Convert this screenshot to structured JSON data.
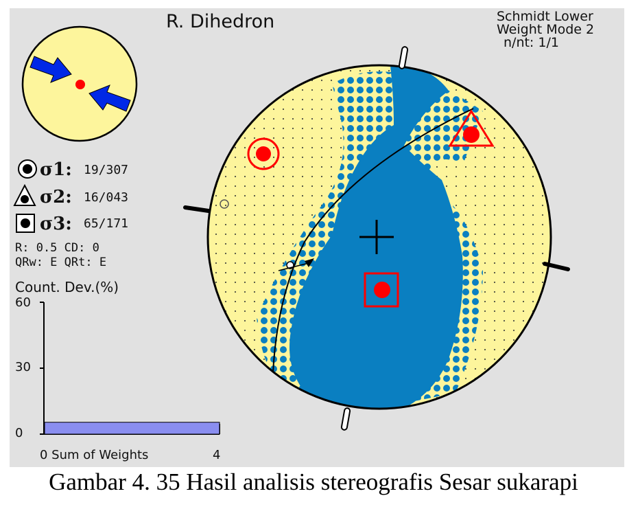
{
  "title": "R. Dihedron",
  "projection": {
    "line1": "Schmidt Lower",
    "line2": "Weight Mode 2",
    "line3": "n/nt: 1/1"
  },
  "sigmas": [
    {
      "label": "σ1:",
      "value": "19/307",
      "marker": "circle"
    },
    {
      "label": "σ2:",
      "value": "16/043",
      "marker": "triangle"
    },
    {
      "label": "σ3:",
      "value": "65/171",
      "marker": "square"
    }
  ],
  "params": {
    "line1": "R: 0.5  CD: 0",
    "line2": "QRw: E  QRt: E"
  },
  "histogram": {
    "title": "Count. Dev.(%)",
    "y_ticks": [
      "60",
      "30",
      "0"
    ],
    "x_label": "0  Sum of Weights",
    "x_max": "4",
    "bar_fraction": 0.09,
    "bar_color": "#8a8ef0"
  },
  "colors": {
    "net_fill": "#fdf59c",
    "compression": "#0a7fc1",
    "marker": "#ff0000",
    "arrows": "#0028e6"
  },
  "caption": "Gambar 4. 35 Hasil analisis stereografis Sesar sukarapi"
}
